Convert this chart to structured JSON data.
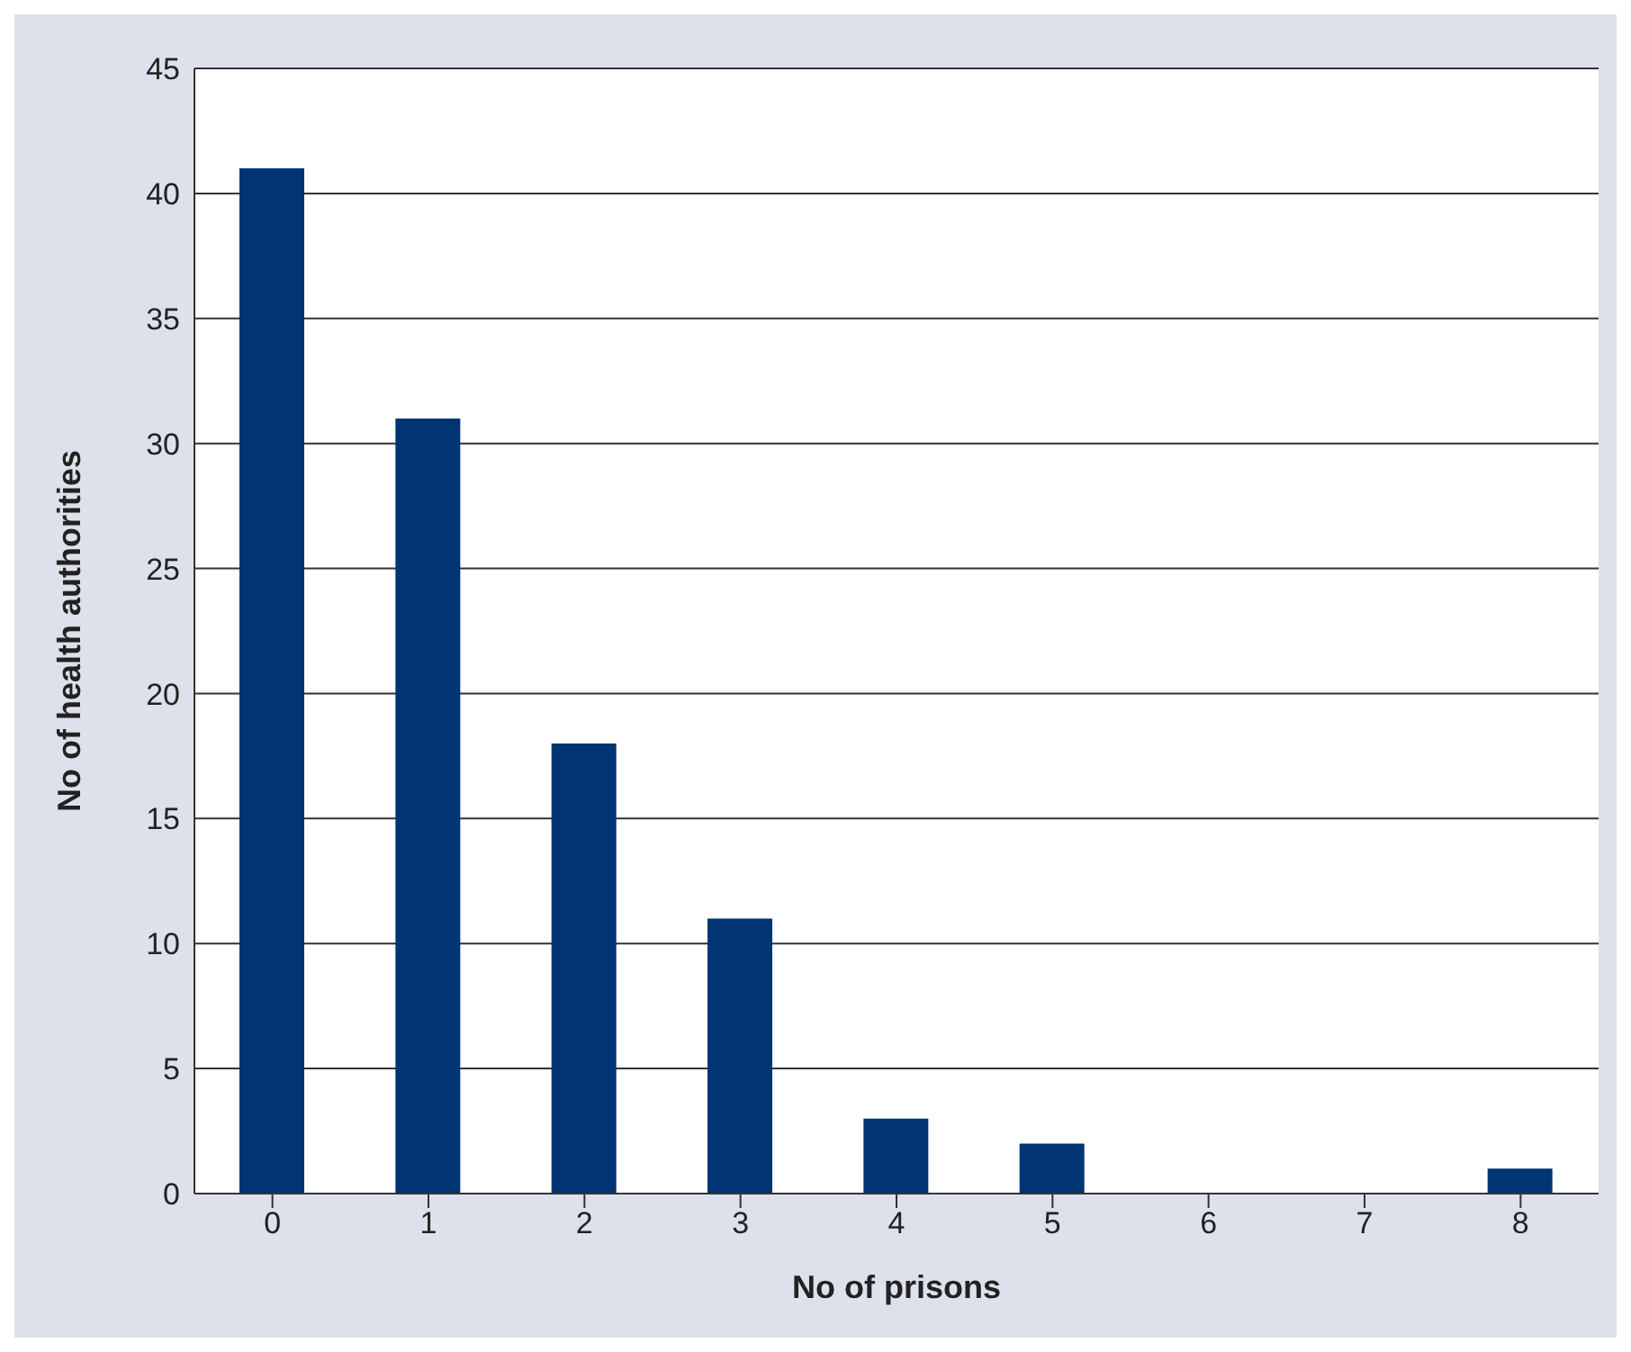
{
  "chart_data": {
    "type": "bar",
    "xlabel": "No of prisons",
    "ylabel": "No of health authorities",
    "categories": [
      "0",
      "1",
      "2",
      "3",
      "4",
      "5",
      "6",
      "7",
      "8"
    ],
    "values": [
      41,
      31,
      18,
      11,
      3,
      2,
      0,
      0,
      1
    ],
    "color": "#003473",
    "ylim": [
      0,
      45
    ],
    "yticks": [
      0,
      5,
      10,
      15,
      20,
      25,
      30,
      35,
      40,
      45
    ],
    "grid": "y",
    "legend": false
  }
}
